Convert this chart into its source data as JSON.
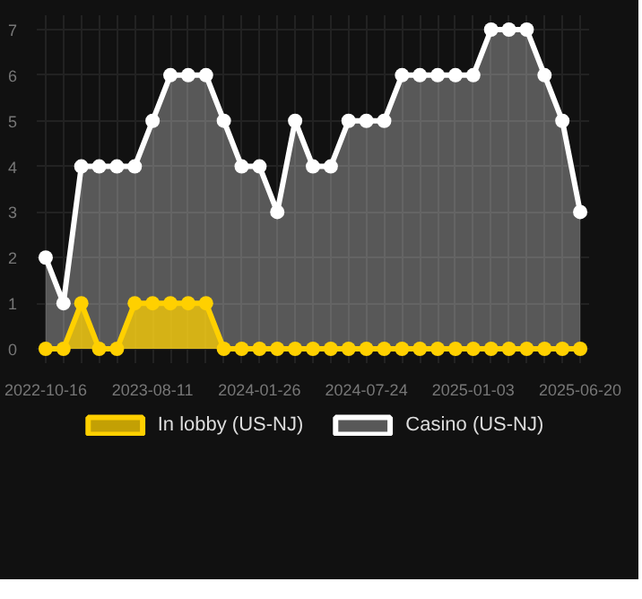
{
  "chart_data": {
    "type": "area",
    "categories": [
      "2022-10-16",
      null,
      null,
      null,
      null,
      null,
      "2023-08-11",
      null,
      null,
      null,
      null,
      null,
      "2024-01-26",
      null,
      null,
      null,
      null,
      null,
      "2024-07-24",
      null,
      null,
      null,
      null,
      null,
      "2025-01-03",
      null,
      null,
      null,
      null,
      null,
      "2025-06-20"
    ],
    "series": [
      {
        "name": "Casino (US-NJ)",
        "color": "#ffffff",
        "values": [
          2,
          1,
          4,
          4,
          4,
          4,
          5,
          6,
          6,
          6,
          5,
          4,
          4,
          3,
          5,
          4,
          4,
          5,
          5,
          5,
          6,
          6,
          6,
          6,
          6,
          7,
          7,
          7,
          6,
          5,
          3
        ]
      },
      {
        "name": "In lobby (US-NJ)",
        "color": "#ffd000",
        "values": [
          0,
          0,
          1,
          0,
          0,
          1,
          1,
          1,
          1,
          1,
          0,
          0,
          0,
          0,
          0,
          0,
          0,
          0,
          0,
          0,
          0,
          0,
          0,
          0,
          0,
          0,
          0,
          0,
          0,
          0,
          0
        ]
      }
    ],
    "ylim": [
      0,
      7
    ],
    "yticks": [
      0,
      1,
      2,
      3,
      4,
      5,
      6,
      7
    ],
    "grid": true,
    "legend": "bottom",
    "marker": "circle",
    "line_style": "solid"
  }
}
